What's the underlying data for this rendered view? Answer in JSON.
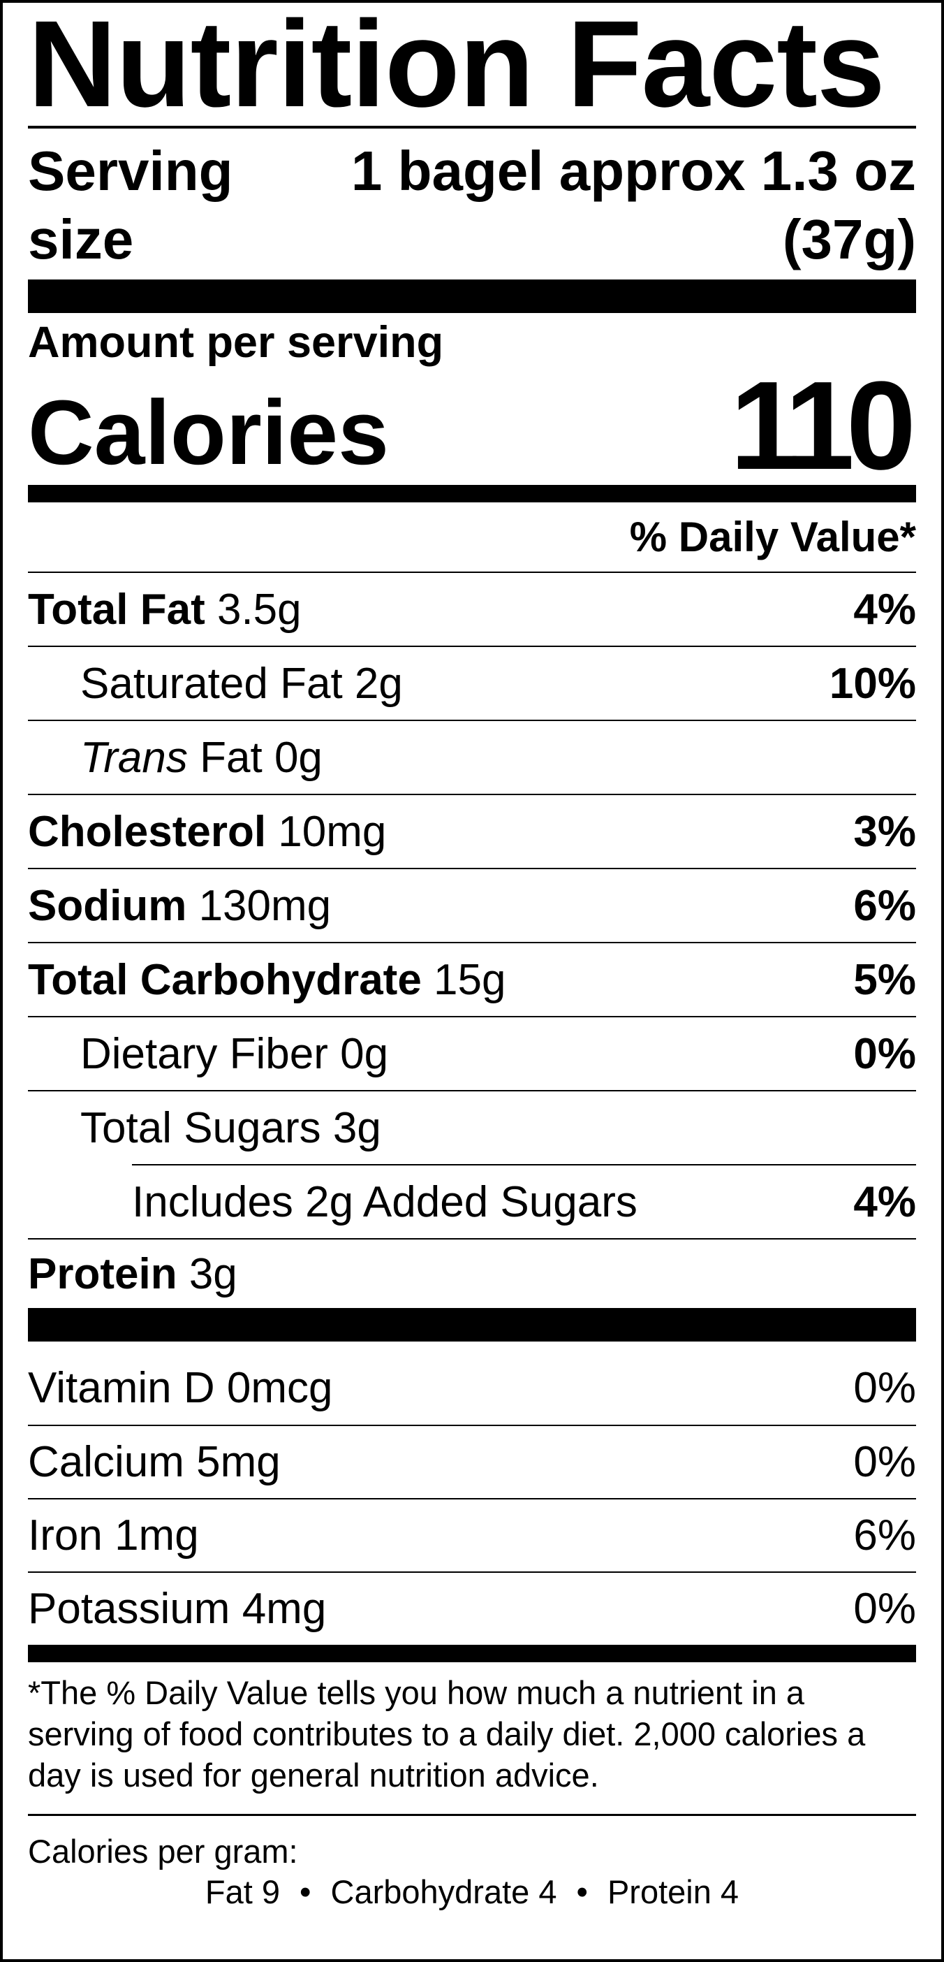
{
  "title": "Nutrition Facts",
  "serving": {
    "label": "Serving size",
    "value": "1 bagel approx 1.3 oz (37g)"
  },
  "amount_label": "Amount per serving",
  "calories": {
    "label": "Calories",
    "value": "110"
  },
  "dv_header": "% Daily Value*",
  "nutrients": [
    {
      "name": "Total Fat",
      "amount": "3.5g",
      "dv": "4%"
    },
    {
      "name": "Saturated Fat",
      "amount": "2g",
      "dv": "10%"
    },
    {
      "prefix": "Trans",
      "name": "Fat",
      "amount": "0g"
    },
    {
      "name": "Cholesterol",
      "amount": "10mg",
      "dv": "3%"
    },
    {
      "name": "Sodium",
      "amount": "130mg",
      "dv": "6%"
    },
    {
      "name": "Total Carbohydrate",
      "amount": "15g",
      "dv": "5%"
    },
    {
      "name": "Dietary Fiber",
      "amount": "0g",
      "dv": "0%"
    },
    {
      "name": "Total Sugars",
      "amount": "3g"
    },
    {
      "name": "Includes 2g Added Sugars",
      "dv": "4%"
    },
    {
      "name": "Protein",
      "amount": "3g"
    }
  ],
  "vitamins": [
    {
      "name": "Vitamin D",
      "amount": "0mcg",
      "dv": "0%"
    },
    {
      "name": "Calcium",
      "amount": "5mg",
      "dv": "0%"
    },
    {
      "name": "Iron",
      "amount": "1mg",
      "dv": "6%"
    },
    {
      "name": "Potassium",
      "amount": "4mg",
      "dv": "0%"
    }
  ],
  "footnote": "*The % Daily Value tells you how much a nutrient in a serving of food contributes to a daily diet. 2,000 calories a day is used for general nutrition advice.",
  "calories_per_gram": {
    "label": "Calories per gram:",
    "items": [
      "Fat 9",
      "Carbohydrate 4",
      "Protein 4"
    ]
  }
}
